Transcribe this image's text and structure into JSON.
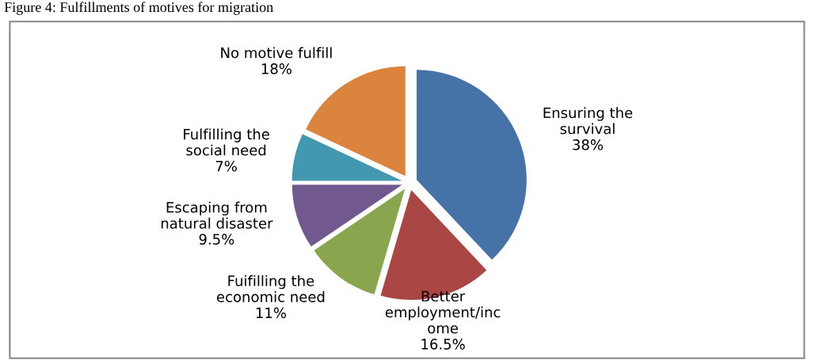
{
  "chart_data": {
    "type": "pie",
    "title": "Figure 4: Fulfillments of motives for migration",
    "categories": [
      "Ensuring the\nsurvival",
      "Better\nemployment/inc\nome",
      "Fuifilling the\neconomic need",
      "Escaping from\nnatural disaster",
      "Fulfilling the\nsocial need",
      "No motive fulfill"
    ],
    "values": [
      38,
      16.5,
      11,
      9.5,
      7,
      18
    ],
    "value_labels": [
      "38%",
      "16.5%",
      "11%",
      "9.5%",
      "7%",
      "18%"
    ],
    "colors": [
      "#4572a7",
      "#aa4643",
      "#89a54e",
      "#71588f",
      "#4198af",
      "#db843d"
    ],
    "legend": false
  }
}
